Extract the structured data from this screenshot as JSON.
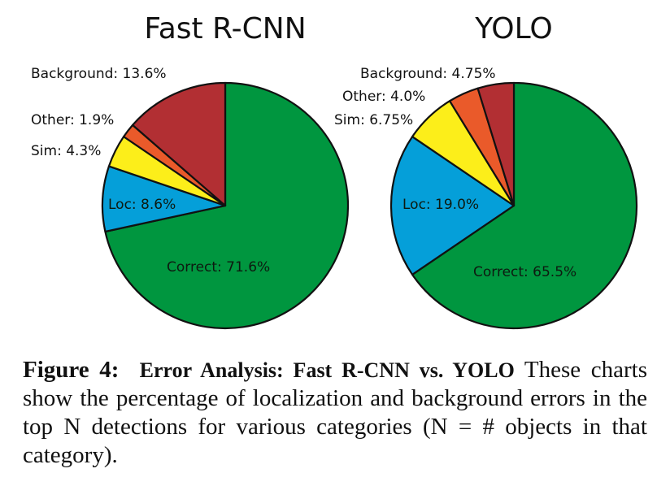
{
  "chart_data": [
    {
      "type": "pie",
      "title": "Fast R-CNN",
      "start_angle": "12 o'clock, counterclockwise for errors",
      "slices": [
        {
          "label": "Correct",
          "value": 71.6,
          "color": "#00963f"
        },
        {
          "label": "Loc",
          "value": 8.6,
          "color": "#059fd9"
        },
        {
          "label": "Sim",
          "value": 4.3,
          "color": "#fcee1a"
        },
        {
          "label": "Other",
          "value": 1.9,
          "color": "#ea5a2a"
        },
        {
          "label": "Background",
          "value": 13.6,
          "color": "#b22f33"
        }
      ],
      "labels_text": {
        "correct": "Correct: 71.6%",
        "loc": "Loc: 8.6%",
        "sim": "Sim: 4.3%",
        "other": "Other: 1.9%",
        "background": "Background: 13.6%"
      }
    },
    {
      "type": "pie",
      "title": "YOLO",
      "slices": [
        {
          "label": "Correct",
          "value": 65.5,
          "color": "#00963f"
        },
        {
          "label": "Loc",
          "value": 19.0,
          "color": "#059fd9"
        },
        {
          "label": "Sim",
          "value": 6.75,
          "color": "#fcee1a"
        },
        {
          "label": "Other",
          "value": 4.0,
          "color": "#ea5a2a"
        },
        {
          "label": "Background",
          "value": 4.75,
          "color": "#b22f33"
        }
      ],
      "labels_text": {
        "correct": "Correct: 65.5%",
        "loc": "Loc: 19.0%",
        "sim": "Sim: 6.75%",
        "other": "Other: 4.0%",
        "background": "Background: 4.75%"
      }
    }
  ],
  "caption": {
    "figure_label": "Figure 4:",
    "bold_title": "Error Analysis: Fast R-CNN vs.  YOLO",
    "body": " These charts show the percentage of localization and background errors in the top N detections for various categories (N = # objects in that category)."
  }
}
